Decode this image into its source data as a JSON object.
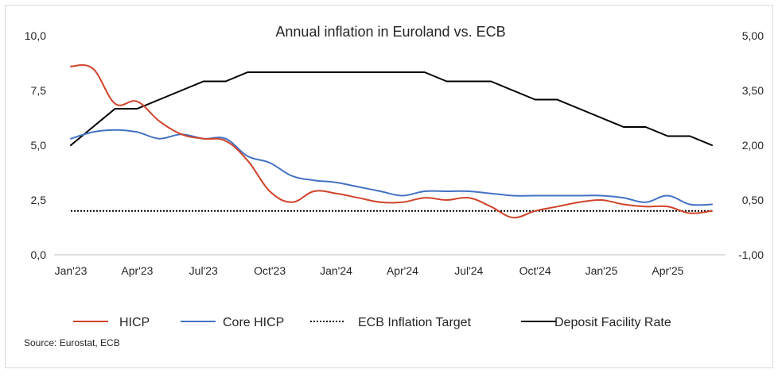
{
  "chart_data": {
    "type": "line",
    "title": "Annual inflation in Euroland vs. ECB",
    "source": "Source: Eurostat, ECB",
    "x": [
      "Jan'23",
      "Feb'23",
      "Mar'23",
      "Apr'23",
      "May'23",
      "Jun'23",
      "Jul'23",
      "Aug'23",
      "Sep'23",
      "Oct'23",
      "Nov'23",
      "Dec'23",
      "Jan'24",
      "Feb'24",
      "Mar'24",
      "Apr'24",
      "May'24",
      "Jun'24",
      "Jul'24",
      "Aug'24",
      "Sep'24",
      "Oct'24",
      "Nov'24",
      "Dec'24",
      "Jan'25",
      "Feb'25",
      "Mar'25",
      "Apr'25",
      "May'25",
      "Jun'25"
    ],
    "x_tick_labels": [
      "Jan'23",
      "Apr'23",
      "Jul'23",
      "Oct'23",
      "Jan'24",
      "Apr'24",
      "Jul'24",
      "Oct'24",
      "Jan'25",
      "Apr'25"
    ],
    "y_left": {
      "ylim": [
        0,
        10
      ],
      "ticks": [
        "0,0",
        "2,5",
        "5,0",
        "7,5",
        "10,0"
      ]
    },
    "y_right": {
      "ylim": [
        -1,
        5
      ],
      "ticks": [
        "-1,00",
        "0,50",
        "2,00",
        "3,50",
        "5,00"
      ]
    },
    "series": [
      {
        "name": "HICP",
        "axis": "left",
        "color": "#d0432a",
        "style": "solid",
        "values": [
          8.6,
          8.5,
          6.9,
          7.0,
          6.1,
          5.5,
          5.3,
          5.2,
          4.3,
          2.9,
          2.4,
          2.9,
          2.8,
          2.6,
          2.4,
          2.4,
          2.6,
          2.5,
          2.6,
          2.2,
          1.7,
          2.0,
          2.2,
          2.4,
          2.5,
          2.3,
          2.2,
          2.2,
          1.9,
          2.0
        ]
      },
      {
        "name": "Core HICP",
        "axis": "left",
        "color": "#4472c4",
        "style": "solid",
        "values": [
          5.3,
          5.6,
          5.7,
          5.6,
          5.3,
          5.5,
          5.3,
          5.3,
          4.5,
          4.2,
          3.6,
          3.4,
          3.3,
          3.1,
          2.9,
          2.7,
          2.9,
          2.9,
          2.9,
          2.8,
          2.7,
          2.7,
          2.7,
          2.7,
          2.7,
          2.6,
          2.4,
          2.7,
          2.3,
          2.3
        ]
      },
      {
        "name": "ECB Inflation Target",
        "axis": "left",
        "color": "#000000",
        "style": "dotted",
        "values": [
          2.0,
          2.0,
          2.0,
          2.0,
          2.0,
          2.0,
          2.0,
          2.0,
          2.0,
          2.0,
          2.0,
          2.0,
          2.0,
          2.0,
          2.0,
          2.0,
          2.0,
          2.0,
          2.0,
          2.0,
          2.0,
          2.0,
          2.0,
          2.0,
          2.0,
          2.0,
          2.0,
          2.0,
          2.0,
          2.0
        ]
      },
      {
        "name": "Deposit Facility Rate",
        "axis": "right",
        "color": "#000000",
        "style": "solid",
        "values": [
          2.0,
          2.5,
          3.0,
          3.0,
          3.25,
          3.5,
          3.75,
          3.75,
          4.0,
          4.0,
          4.0,
          4.0,
          4.0,
          4.0,
          4.0,
          4.0,
          4.0,
          3.75,
          3.75,
          3.75,
          3.5,
          3.25,
          3.25,
          3.0,
          2.75,
          2.5,
          2.5,
          2.25,
          2.25,
          2.0
        ]
      }
    ],
    "grid": false,
    "legend_position": "bottom"
  }
}
